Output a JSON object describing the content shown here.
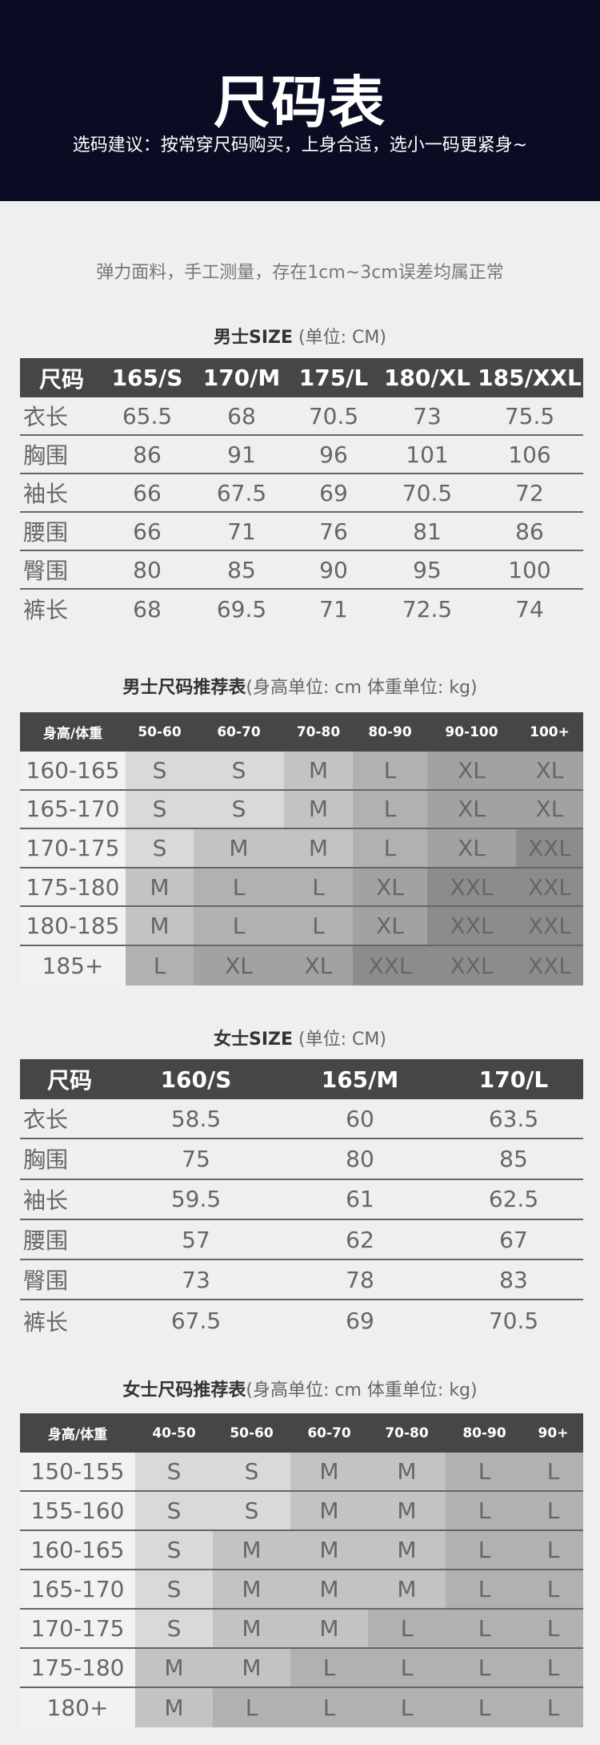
{
  "header": {
    "title": "尺码表",
    "subtitle": "选码建议：按常穿尺码购买，上身合适，选小一码更紧身~",
    "bg": "#0a0c24"
  },
  "note": "弹力面料，手工测量，存在1cm~3cm误差均属正常",
  "men_size": {
    "title_bold": "男士SIZE",
    "title_unit": "(单位: CM)",
    "headers": [
      "尺码",
      "165/S",
      "170/M",
      "175/L",
      "180/XL",
      "185/XXL"
    ],
    "rows": [
      [
        "衣长",
        "65.5",
        "68",
        "70.5",
        "73",
        "75.5"
      ],
      [
        "胸围",
        "86",
        "91",
        "96",
        "101",
        "106"
      ],
      [
        "袖长",
        "66",
        "67.5",
        "69",
        "70.5",
        "72"
      ],
      [
        "腰围",
        "66",
        "71",
        "76",
        "81",
        "86"
      ],
      [
        "臀围",
        "80",
        "85",
        "90",
        "95",
        "100"
      ],
      [
        "裤长",
        "68",
        "69.5",
        "71",
        "72.5",
        "74"
      ]
    ]
  },
  "men_rec": {
    "title_bold": "男士尺码推荐表",
    "title_unit": "(身高单位: cm  体重单位: kg)",
    "headers": [
      "身高/体重",
      "50-60",
      "60-70",
      "70-80",
      "80-90",
      "90-100",
      "100+"
    ],
    "rows": [
      [
        "160-165",
        "S",
        "S",
        "M",
        "L",
        "XL",
        "XL"
      ],
      [
        "165-170",
        "S",
        "S",
        "M",
        "L",
        "XL",
        "XL"
      ],
      [
        "170-175",
        "S",
        "M",
        "M",
        "L",
        "XL",
        "XXL"
      ],
      [
        "175-180",
        "M",
        "L",
        "L",
        "XL",
        "XXL",
        "XXL"
      ],
      [
        "180-185",
        "M",
        "L",
        "L",
        "XL",
        "XXL",
        "XXL"
      ],
      [
        "185+",
        "L",
        "XL",
        "XL",
        "XXL",
        "XXL",
        "XXL"
      ]
    ]
  },
  "women_size": {
    "title_bold": "女士SIZE",
    "title_unit": "(单位: CM)",
    "headers": [
      "尺码",
      "160/S",
      "165/M",
      "170/L"
    ],
    "rows": [
      [
        "衣长",
        "58.5",
        "60",
        "63.5"
      ],
      [
        "胸围",
        "75",
        "80",
        "85"
      ],
      [
        "袖长",
        "59.5",
        "61",
        "62.5"
      ],
      [
        "腰围",
        "57",
        "62",
        "67"
      ],
      [
        "臀围",
        "73",
        "78",
        "83"
      ],
      [
        "裤长",
        "67.5",
        "69",
        "70.5"
      ]
    ]
  },
  "women_rec": {
    "title_bold": "女士尺码推荐表",
    "title_unit": "(身高单位: cm  体重单位: kg)",
    "headers": [
      "身高/体重",
      "40-50",
      "50-60",
      "60-70",
      "70-80",
      "80-90",
      "90+"
    ],
    "rows": [
      [
        "150-155",
        "S",
        "S",
        "M",
        "M",
        "L",
        "L"
      ],
      [
        "155-160",
        "S",
        "S",
        "M",
        "M",
        "L",
        "L"
      ],
      [
        "160-165",
        "S",
        "M",
        "M",
        "M",
        "L",
        "L"
      ],
      [
        "165-170",
        "S",
        "M",
        "M",
        "M",
        "L",
        "L"
      ],
      [
        "170-175",
        "S",
        "M",
        "M",
        "L",
        "L",
        "L"
      ],
      [
        "175-180",
        "M",
        "M",
        "L",
        "L",
        "L",
        "L"
      ],
      [
        "180+",
        "M",
        "L",
        "L",
        "L",
        "L",
        "L"
      ]
    ]
  },
  "cell_colors": {
    "S": "#d9d9d9",
    "M": "#c3c3c3",
    "L": "#b1b1b1",
    "XL": "#a2a2a2",
    "XXL": "#8c8c8c"
  }
}
